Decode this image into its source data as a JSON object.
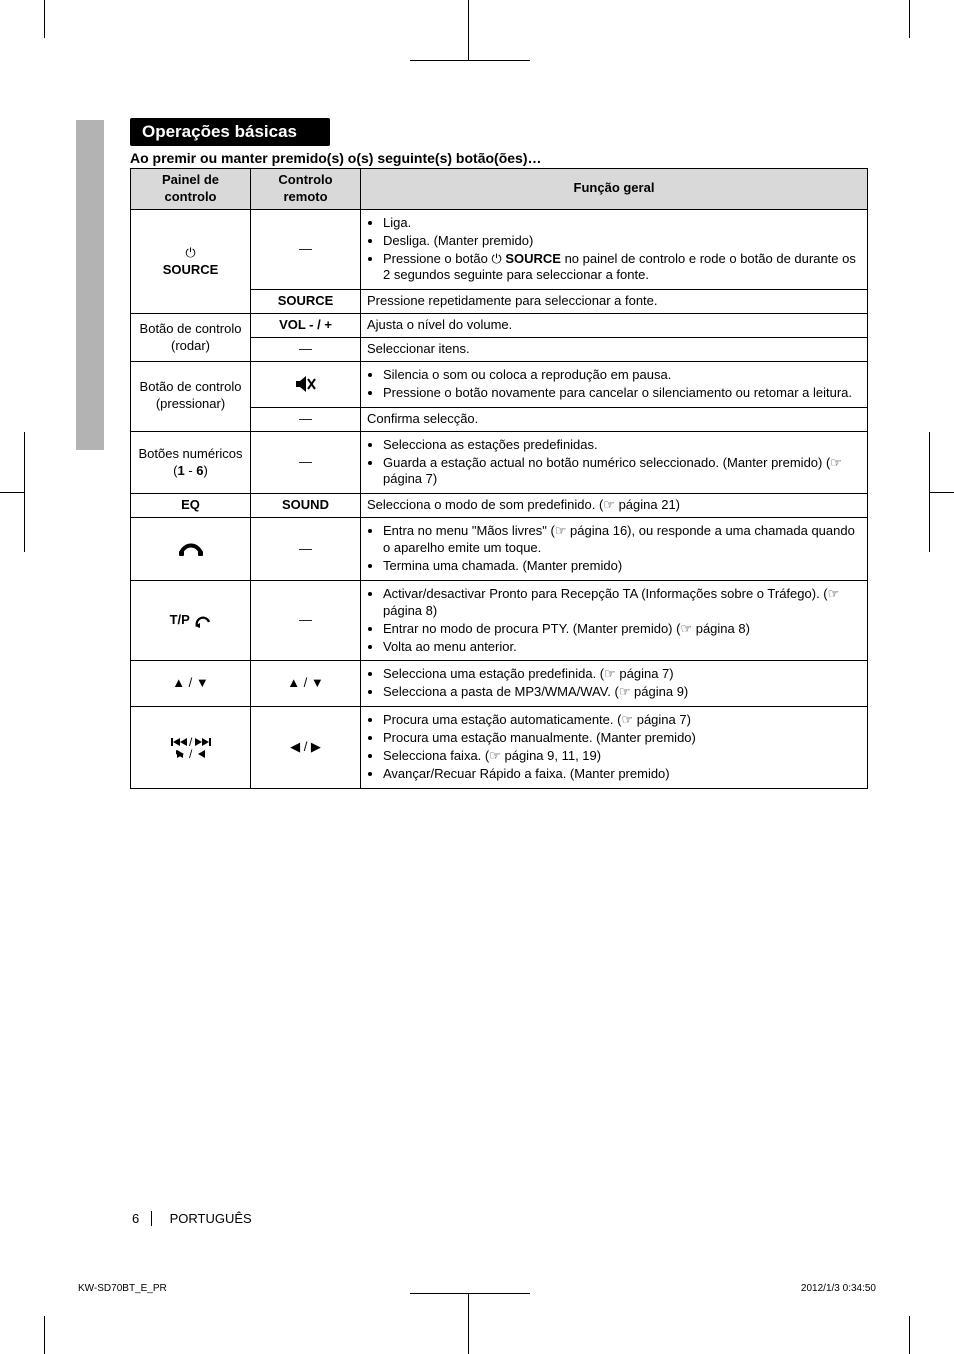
{
  "section_title": "Operações básicas",
  "subheading": "Ao premir ou manter premido(s) o(s) seguinte(s) botão(ões)…",
  "table": {
    "headers": {
      "panel": "Painel de controlo",
      "remote": "Controlo remoto",
      "function": "Função geral"
    },
    "rows": [
      {
        "panel_html": "<span class='glyph'>&#x23FB;</span><br><b>SOURCE</b>",
        "panel_rowspan": 2,
        "remote": "—",
        "function_items": [
          "Liga.",
          "Desliga. (Manter premido)",
          "Pressione o botão <span class='glyph'>&#x23FB;</span> <b>SOURCE</b> no painel de controlo e rode o botão de durante os 2 segundos seguinte para seleccionar a fonte."
        ]
      },
      {
        "remote": "SOURCE",
        "remote_bold": true,
        "function_plain": "Pressione repetidamente para seleccionar a fonte."
      },
      {
        "panel": "Botão de controlo (rodar)",
        "panel_rowspan": 2,
        "remote": "VOL - / +",
        "remote_bold": true,
        "function_plain": "Ajusta o nível do volume."
      },
      {
        "remote": "—",
        "function_plain": "Seleccionar itens."
      },
      {
        "panel": "Botão de controlo (pressionar)",
        "panel_rowspan": 2,
        "remote_svg": "mute",
        "function_items": [
          "Silencia o som ou coloca a reprodução em pausa.",
          "Pressione o botão novamente para cancelar o silenciamento ou retomar a leitura."
        ]
      },
      {
        "remote": "—",
        "function_plain": "Confirma selecção."
      },
      {
        "panel_html": "Botões numéricos<br>(<b>1</b> - <b>6</b>)",
        "remote": "—",
        "function_items": [
          "Selecciona as estações predefinidas.",
          "Guarda a estação actual no botão numérico seleccionado. (Manter premido) (☞ página 7)"
        ]
      },
      {
        "panel": "EQ",
        "panel_bold": true,
        "remote": "SOUND",
        "remote_bold": true,
        "function_plain": "Selecciona o modo de som predefinido. (☞ página 21)"
      },
      {
        "panel_svg": "phone",
        "remote": "—",
        "function_items": [
          "Entra no menu \"Mãos livres\" (☞ página 16), ou responde a uma chamada quando o aparelho emite um toque.",
          "Termina uma chamada. (Manter premido)"
        ]
      },
      {
        "panel_html": "<b>T/P</b> <svg class='inline-icon' width='18' height='14' viewBox='0 0 18 14'><path d='M4 12 A6 6 0 1 1 16 8' fill='none' stroke='#000' stroke-width='2.2'/><polygon points='2,12 7,9 7,14' fill='#000'/></svg>",
        "remote": "—",
        "function_items": [
          "Activar/desactivar Pronto para Recepção TA (Informações sobre o Tráfego). (☞ página 8)",
          "Entrar no modo de procura PTY. (Manter premido) (☞ página 8)",
          "Volta ao menu anterior."
        ]
      },
      {
        "panel_glyph": "▲ / ▼",
        "remote_glyph": "▲ / ▼",
        "function_items": [
          "Selecciona uma estação predefinida. (☞ página 7)",
          "Selecciona a pasta de MP3/WMA/WAV. (☞ página 9)"
        ]
      },
      {
        "panel_svg": "skip",
        "remote_glyph": "◀ / ▶",
        "function_items": [
          "Procura uma estação automaticamente. (☞ página 7)",
          "Procura uma estação manualmente. (Manter premido)",
          "Selecciona faixa. (☞ página 9, 11, 19)",
          "Avançar/Recuar Rápido a faixa. (Manter premido)"
        ]
      }
    ]
  },
  "footer": {
    "page_number": "6",
    "language": "PORTUGUÊS",
    "doc_id": "KW-SD70BT_E_PR",
    "timestamp": "2012/1/3   0:34:50"
  },
  "colors": {
    "header_bg": "#d9d9d9",
    "tab_bg": "#b3b3b3",
    "section_bg": "#000000",
    "section_fg": "#ffffff",
    "text": "#000000",
    "page_bg": "#ffffff"
  }
}
